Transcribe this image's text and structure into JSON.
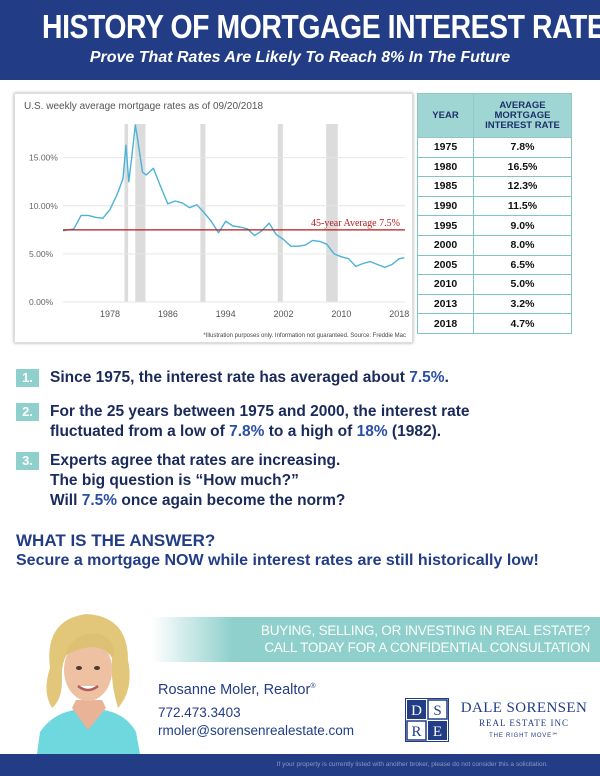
{
  "header": {
    "title": "HISTORY OF MORTGAGE INTEREST RATES",
    "subtitle": "Prove That Rates Are Likely To Reach 8% In The Future"
  },
  "chart": {
    "title": "U.S. weekly average mortgage rates as of 09/20/2018",
    "disclaimer": "*Illustration purposes only.  Information not guaranteed. Source: Freddie Mac",
    "average_label": "45-year Average 7.5%"
  },
  "chart_data": {
    "type": "line",
    "title": "U.S. weekly average mortgage rates as of 09/20/2018",
    "xlabel": "",
    "ylabel": "",
    "x_ticks": [
      "1978",
      "1986",
      "1994",
      "2002",
      "2010",
      "2018"
    ],
    "y_ticks": [
      "0.00%",
      "5.00%",
      "10.00%",
      "15.00%"
    ],
    "xlim": [
      1971.5,
      2018.8
    ],
    "ylim": [
      0,
      18.5
    ],
    "grid": true,
    "x": [
      1971.5,
      1973,
      1974,
      1975,
      1976,
      1977,
      1978,
      1979,
      1979.8,
      1980.2,
      1980.6,
      1981,
      1981.5,
      1981.8,
      1982.5,
      1983,
      1984,
      1985,
      1986,
      1987,
      1988,
      1989,
      1990,
      1991,
      1992,
      1993,
      1994,
      1995,
      1996,
      1997,
      1998,
      1999,
      2000,
      2001,
      2002,
      2003,
      2004,
      2005,
      2006,
      2007,
      2008,
      2009,
      2010,
      2011,
      2012,
      2013,
      2014,
      2015,
      2016,
      2017,
      2018,
      2018.7
    ],
    "y": [
      7.4,
      7.6,
      9.0,
      9.0,
      8.8,
      8.7,
      9.6,
      11.2,
      12.8,
      16.3,
      12.5,
      15.0,
      18.4,
      17.0,
      13.5,
      13.2,
      13.9,
      12.0,
      10.2,
      10.5,
      10.3,
      9.8,
      10.1,
      9.3,
      8.4,
      7.2,
      8.4,
      7.9,
      7.8,
      7.6,
      6.9,
      7.4,
      8.2,
      7.0,
      6.5,
      5.8,
      5.8,
      5.9,
      6.4,
      6.3,
      6.0,
      5.0,
      4.7,
      4.5,
      3.7,
      4.0,
      4.2,
      3.9,
      3.6,
      3.9,
      4.5,
      4.6
    ],
    "reference_lines": [
      {
        "label": "45-year Average 7.5%",
        "value": 7.5
      }
    ],
    "shaded_periods": [
      [
        1980.0,
        1980.5
      ],
      [
        1981.5,
        1982.9
      ],
      [
        1990.5,
        1991.2
      ],
      [
        2001.2,
        2001.9
      ],
      [
        2007.9,
        2009.5
      ]
    ]
  },
  "table": {
    "col_year": "YEAR",
    "col_rate_lines": [
      "AVERAGE",
      "MORTGAGE",
      "INTEREST RATE"
    ],
    "rows": [
      {
        "year": "1975",
        "rate": "7.8%"
      },
      {
        "year": "1980",
        "rate": "16.5%"
      },
      {
        "year": "1985",
        "rate": "12.3%"
      },
      {
        "year": "1990",
        "rate": "11.5%"
      },
      {
        "year": "1995",
        "rate": "9.0%"
      },
      {
        "year": "2000",
        "rate": "8.0%"
      },
      {
        "year": "2005",
        "rate": "6.5%"
      },
      {
        "year": "2010",
        "rate": "5.0%"
      },
      {
        "year": "2013",
        "rate": "3.2%"
      },
      {
        "year": "2018",
        "rate": "4.7%"
      }
    ]
  },
  "points": {
    "p1": {
      "num": "1.",
      "a": "Since 1975, the interest rate has averaged about ",
      "b": "7.5%",
      "c": "."
    },
    "p2": {
      "num": "2.",
      "line1": "For the 25 years between 1975 and 2000, the interest rate",
      "a": "fluctuated from a low of ",
      "b": "7.8%",
      "c": " to a high of ",
      "d": "18%",
      "e": " (1982)."
    },
    "p3": {
      "num": "3.",
      "line1": "Experts agree that rates are increasing.",
      "line2": "The big question is “How much?”",
      "a": "Will ",
      "b": "7.5%",
      "c": " once again become the norm?"
    }
  },
  "answer": {
    "title": "WHAT IS THE ANSWER?",
    "subtitle": "Secure a mortgage NOW while interest rates are still historically low!"
  },
  "banner": {
    "line1": "BUYING, SELLING, OR INVESTING IN REAL ESTATE?",
    "line2": "CALL TODAY FOR A CONFIDENTIAL CONSULTATION"
  },
  "agent": {
    "name": "Rosanne Moler, Realtor",
    "reg": "®",
    "phone": "772.473.3403",
    "email": "rmoler@sorensenrealestate.com"
  },
  "logo": {
    "letters": [
      "D",
      "S",
      "R",
      "E"
    ],
    "line1": "DALE SORENSEN",
    "line2": "REAL ESTATE INC",
    "tagline": "THE RIGHT MOVE℠"
  },
  "footer": {
    "text": "If your property is currently listed with another broker, please do not consider this a solicitation."
  },
  "colors": {
    "navy": "#223d86",
    "teal": "#8fd0cc",
    "series": "#4ab3d6",
    "average_line": "#b31b1b"
  }
}
